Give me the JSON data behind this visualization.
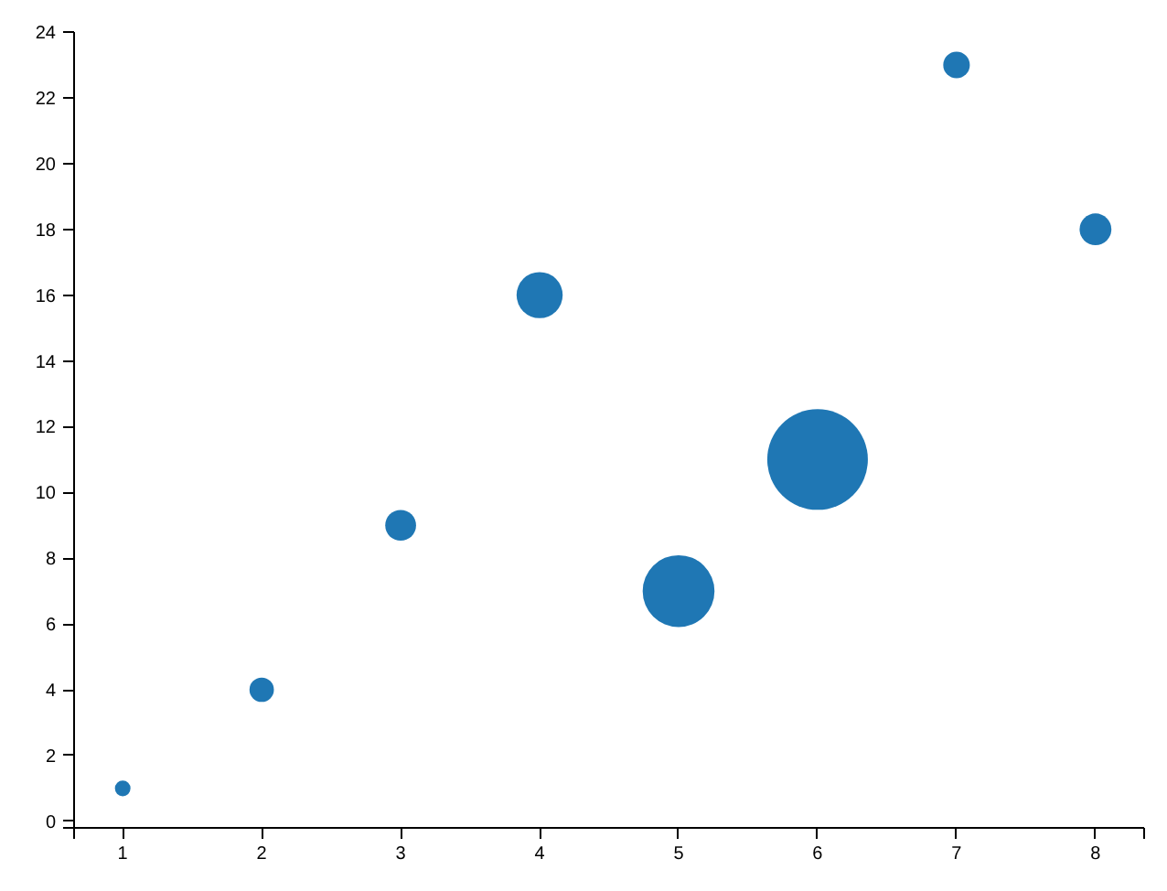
{
  "chart_data": {
    "type": "bubble",
    "x": [
      1,
      2,
      3,
      4,
      5,
      6,
      7,
      8
    ],
    "values": [
      1,
      4,
      9,
      16,
      7,
      11,
      23,
      18
    ],
    "sizes": [
      0.024,
      0.059,
      0.094,
      0.21,
      0.51,
      1,
      0.07,
      0.1
    ],
    "color": "#1f77b4",
    "marker": "circle",
    "xlim": [
      0.65,
      8.35
    ],
    "ylim": [
      -0.2,
      24
    ],
    "xticks": [
      {
        "value": 0.65,
        "label": null
      },
      1,
      2,
      3,
      4,
      5,
      6,
      7,
      8,
      {
        "value": 8.35,
        "label": null
      }
    ],
    "yticks": [
      {
        "value": -0.2,
        "label": null
      },
      0,
      2,
      4,
      6,
      8,
      10,
      12,
      14,
      16,
      18,
      20,
      22,
      24
    ]
  }
}
